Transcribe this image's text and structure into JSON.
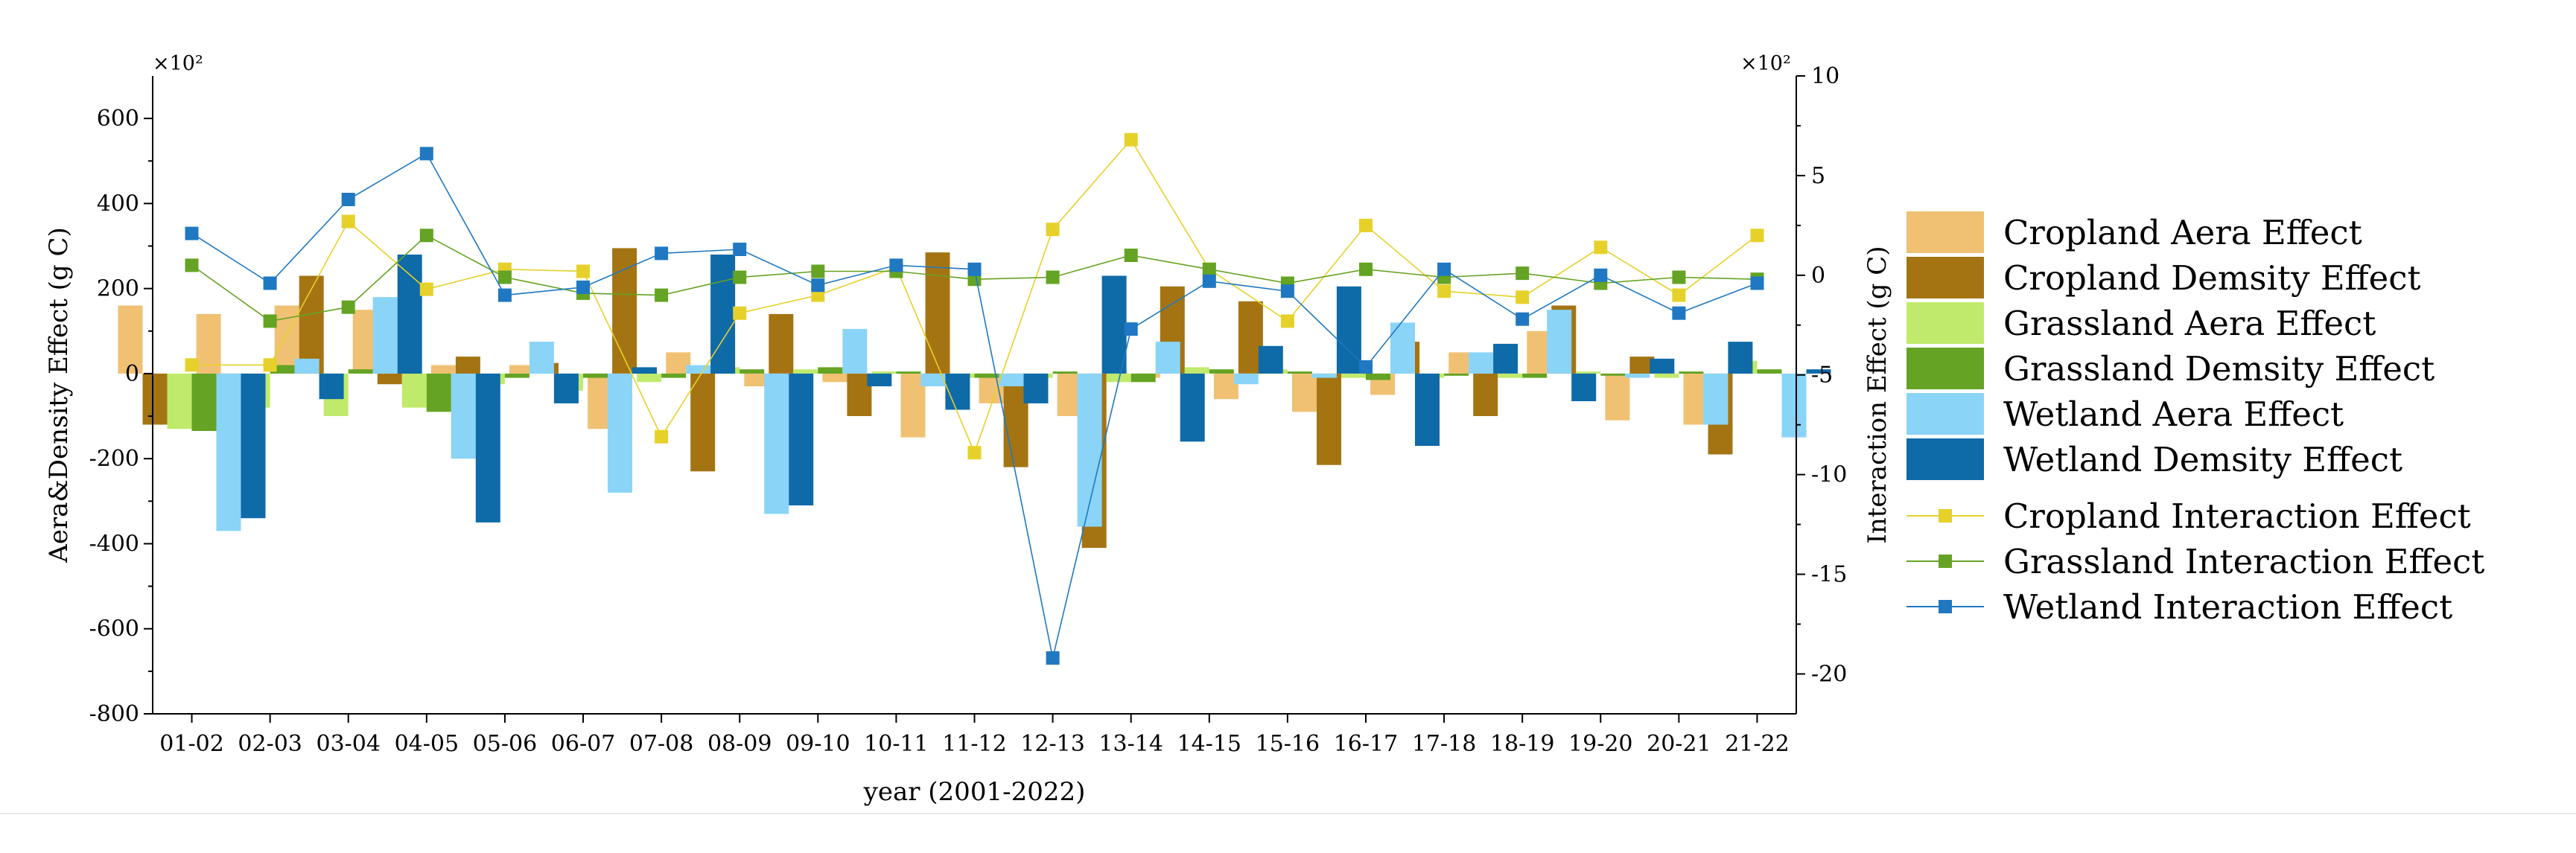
{
  "chart_data": {
    "type": "bar",
    "categories": [
      "01-02",
      "02-03",
      "03-04",
      "04-05",
      "05-06",
      "06-07",
      "07-08",
      "08-09",
      "09-10",
      "10-11",
      "11-12",
      "12-13",
      "13-14",
      "14-15",
      "15-16",
      "16-17",
      "17-18",
      "18-19",
      "19-20",
      "20-21",
      "21-22"
    ],
    "xlabel": "year (2001-2022)",
    "ylabel_left": "Aera&Density Effect (g C)",
    "ylabel_right": "Interaction Effect (g C)",
    "left_multiplier": "×10²",
    "right_multiplier": "×10²",
    "ylim_left": [
      -800,
      700
    ],
    "ylim_right": [
      -22,
      10
    ],
    "yticks_left": [
      -800,
      -600,
      -400,
      -200,
      0,
      200,
      400,
      600
    ],
    "yticks_right": [
      -20,
      -15,
      -10,
      -5,
      0,
      5,
      10
    ],
    "bar_series": [
      {
        "name": "Cropland Aera Effect",
        "color": "#F0C173",
        "values": [
          160,
          140,
          160,
          150,
          20,
          20,
          -130,
          50,
          -30,
          -20,
          -150,
          -70,
          -100,
          -10,
          -60,
          -90,
          -50,
          50,
          100,
          -110,
          -120
        ]
      },
      {
        "name": "Cropland Demsity Effect",
        "color": "#A47413",
        "values": [
          -120,
          -150,
          230,
          -25,
          40,
          25,
          295,
          -230,
          140,
          -100,
          285,
          -220,
          -410,
          205,
          170,
          -215,
          75,
          -100,
          160,
          40,
          -190
        ]
      },
      {
        "name": "Grassland Aera Effect",
        "color": "#C0EA6B",
        "values": [
          -130,
          -80,
          -100,
          -80,
          -25,
          -40,
          -20,
          15,
          10,
          5,
          -10,
          -10,
          -20,
          15,
          10,
          -10,
          -10,
          -10,
          5,
          -10,
          30
        ]
      },
      {
        "name": "Grassland Demsity Effect",
        "color": "#64A323",
        "values": [
          -135,
          20,
          10,
          -90,
          -10,
          -10,
          -10,
          10,
          15,
          5,
          -10,
          5,
          -20,
          10,
          5,
          -15,
          -5,
          -10,
          -5,
          5,
          10
        ]
      },
      {
        "name": "Wetland Aera Effect",
        "color": "#8AD4F8",
        "values": [
          -370,
          35,
          180,
          -200,
          75,
          -280,
          20,
          -330,
          105,
          -30,
          -30,
          -360,
          75,
          -25,
          -10,
          120,
          50,
          150,
          -10,
          -120,
          -150
        ]
      },
      {
        "name": "Wetland Demsity Effect",
        "color": "#0F6AA8",
        "values": [
          -340,
          -60,
          280,
          -350,
          -70,
          15,
          280,
          -310,
          -30,
          -85,
          -70,
          230,
          -160,
          65,
          205,
          -170,
          70,
          -65,
          35,
          75,
          10
        ]
      }
    ],
    "line_series": [
      {
        "name": "Cropland  Interaction Effect",
        "color": "#E6D12A",
        "values": [
          -4.5,
          -4.5,
          2.7,
          -0.7,
          0.3,
          0.2,
          -8.1,
          -1.9,
          -1.0,
          0.4,
          -8.9,
          2.3,
          6.8,
          0.3,
          -2.3,
          2.5,
          -0.8,
          -1.1,
          1.4,
          -1.0,
          2.0
        ]
      },
      {
        "name": "Grassland Interaction Effect",
        "color": "#64A323",
        "values": [
          0.5,
          -2.3,
          -1.6,
          2.0,
          -0.1,
          -0.9,
          -1.0,
          -0.1,
          0.2,
          0.2,
          -0.2,
          -0.1,
          1.0,
          0.3,
          -0.4,
          0.3,
          -0.1,
          0.1,
          -0.4,
          -0.1,
          -0.2
        ]
      },
      {
        "name": "Wetland Interaction Effect",
        "color": "#1F78C1",
        "values": [
          2.1,
          -0.4,
          3.8,
          6.1,
          -1.0,
          -0.6,
          1.1,
          1.3,
          -0.5,
          0.5,
          0.3,
          -19.2,
          -2.7,
          -0.3,
          -0.8,
          -4.6,
          0.3,
          -2.2,
          0.0,
          -1.9,
          -0.4
        ]
      }
    ],
    "legend": "right"
  }
}
